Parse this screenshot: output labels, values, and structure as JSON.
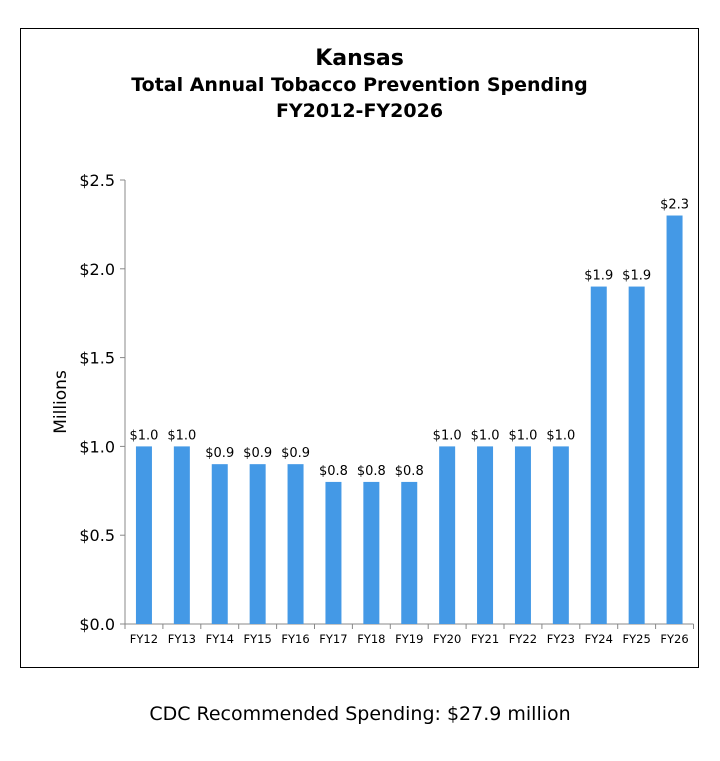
{
  "chart_data": {
    "type": "bar",
    "title": "Kansas",
    "subtitle_lines": [
      "Total Annual Tobacco Prevention Spending",
      "FY2012-FY2026"
    ],
    "ylabel": "Millions",
    "xlabel": "",
    "categories": [
      "FY12",
      "FY13",
      "FY14",
      "FY15",
      "FY16",
      "FY17",
      "FY18",
      "FY19",
      "FY20",
      "FY21",
      "FY22",
      "FY23",
      "FY24",
      "FY25",
      "FY26"
    ],
    "values": [
      1.0,
      1.0,
      0.9,
      0.9,
      0.9,
      0.8,
      0.8,
      0.8,
      1.0,
      1.0,
      1.0,
      1.0,
      1.9,
      1.9,
      2.3
    ],
    "data_labels": [
      "$1.0",
      "$1.0",
      "$0.9",
      "$0.9",
      "$0.9",
      "$0.8",
      "$0.8",
      "$0.8",
      "$1.0",
      "$1.0",
      "$1.0",
      "$1.0",
      "$1.9",
      "$1.9",
      "$2.3"
    ],
    "ylim": [
      0,
      2.5
    ],
    "yticks": [
      0,
      0.5,
      1.0,
      1.5,
      2.0,
      2.5
    ],
    "ytick_labels": [
      "$0.0",
      "$0.5",
      "$1.0",
      "$1.5",
      "$2.0",
      "$2.5"
    ],
    "grid": false,
    "legend": "none",
    "bar_color": "#4499e6"
  },
  "note": "CDC Recommended Spending: $27.9 million"
}
